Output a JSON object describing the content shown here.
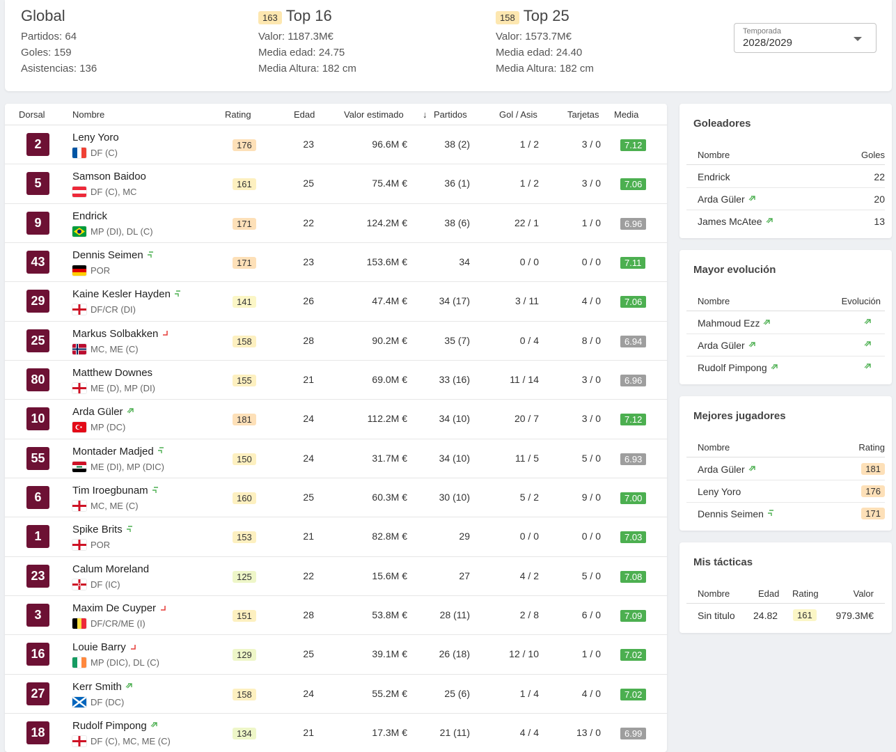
{
  "summary": {
    "global": {
      "title": "Global",
      "lines": [
        "Partidos: 64",
        "Goles: 159",
        "Asistencias: 136"
      ]
    },
    "top16": {
      "badge": "163",
      "title": "Top 16",
      "lines": [
        "Valor: 1187.3M€",
        "Media edad: 24.75",
        "Media Altura: 182 cm"
      ]
    },
    "top25": {
      "badge": "158",
      "title": "Top 25",
      "lines": [
        "Valor: 1573.7M€",
        "Media edad: 24.40",
        "Media Altura: 182 cm"
      ]
    },
    "season": {
      "label": "Temporada",
      "value": "2028/2029"
    }
  },
  "table": {
    "headers": {
      "dorsal": "Dorsal",
      "nombre": "Nombre",
      "rating": "Rating",
      "edad": "Edad",
      "valor": "Valor estimado",
      "partidos": "Partidos",
      "gol_asis": "Gol / Asis",
      "tarjetas": "Tarjetas",
      "media": "Media"
    },
    "sort_icon": "↓",
    "rows": [
      {
        "dorsal": "2",
        "name": "Leny Yoro",
        "flag": "fr",
        "trend": "",
        "pos": "DF (C)",
        "rating": "176",
        "edad": "23",
        "valor": "96.6M €",
        "partidos": "38 (2)",
        "gol_asis": "1 / 2",
        "tarjetas": "3 / 0",
        "media": "7.12",
        "media_color": "green"
      },
      {
        "dorsal": "5",
        "name": "Samson Baidoo",
        "flag": "at",
        "trend": "",
        "pos": "DF (C), MC",
        "rating": "161",
        "edad": "25",
        "valor": "75.4M €",
        "partidos": "36 (1)",
        "gol_asis": "1 / 2",
        "tarjetas": "3 / 0",
        "media": "7.06",
        "media_color": "green"
      },
      {
        "dorsal": "9",
        "name": "Endrick",
        "flag": "br",
        "trend": "",
        "pos": "MP (DI), DL (C)",
        "rating": "171",
        "edad": "22",
        "valor": "124.2M €",
        "partidos": "38 (6)",
        "gol_asis": "22 / 1",
        "tarjetas": "1 / 0",
        "media": "6.96",
        "media_color": "grey"
      },
      {
        "dorsal": "43",
        "name": "Dennis Seimen",
        "flag": "de",
        "trend": "up",
        "pos": "POR",
        "rating": "171",
        "edad": "23",
        "valor": "153.6M €",
        "partidos": "34",
        "gol_asis": "0 / 0",
        "tarjetas": "0 / 0",
        "media": "7.11",
        "media_color": "green"
      },
      {
        "dorsal": "29",
        "name": "Kaine Kesler Hayden",
        "flag": "en",
        "trend": "up",
        "pos": "DF/CR (DI)",
        "rating": "141",
        "edad": "26",
        "valor": "47.4M €",
        "partidos": "34 (17)",
        "gol_asis": "3 / 11",
        "tarjetas": "4 / 0",
        "media": "7.06",
        "media_color": "green"
      },
      {
        "dorsal": "25",
        "name": "Markus Solbakken",
        "flag": "no",
        "trend": "down",
        "pos": "MC, ME (C)",
        "rating": "158",
        "edad": "28",
        "valor": "90.2M €",
        "partidos": "35 (7)",
        "gol_asis": "0 / 4",
        "tarjetas": "8 / 0",
        "media": "6.94",
        "media_color": "grey"
      },
      {
        "dorsal": "80",
        "name": "Matthew Downes",
        "flag": "en",
        "trend": "",
        "pos": "ME (D), MP (DI)",
        "rating": "155",
        "edad": "21",
        "valor": "69.0M €",
        "partidos": "33 (16)",
        "gol_asis": "11 / 14",
        "tarjetas": "3 / 0",
        "media": "6.96",
        "media_color": "grey"
      },
      {
        "dorsal": "10",
        "name": "Arda Güler",
        "flag": "tr",
        "trend": "up2",
        "pos": "MP (DC)",
        "rating": "181",
        "edad": "24",
        "valor": "112.2M €",
        "partidos": "34 (10)",
        "gol_asis": "20 / 7",
        "tarjetas": "3 / 0",
        "media": "7.12",
        "media_color": "green"
      },
      {
        "dorsal": "55",
        "name": "Montader Madjed",
        "flag": "iq",
        "trend": "up",
        "pos": "ME (DI), MP (DIC)",
        "rating": "150",
        "edad": "24",
        "valor": "31.7M €",
        "partidos": "34 (10)",
        "gol_asis": "11 / 5",
        "tarjetas": "5 / 0",
        "media": "6.93",
        "media_color": "grey"
      },
      {
        "dorsal": "6",
        "name": "Tim Iroegbunam",
        "flag": "en",
        "trend": "up",
        "pos": "MC, ME (C)",
        "rating": "160",
        "edad": "25",
        "valor": "60.3M €",
        "partidos": "30 (10)",
        "gol_asis": "5 / 2",
        "tarjetas": "9 / 0",
        "media": "7.00",
        "media_color": "green"
      },
      {
        "dorsal": "1",
        "name": "Spike Brits",
        "flag": "en",
        "trend": "up",
        "pos": "POR",
        "rating": "153",
        "edad": "21",
        "valor": "82.8M €",
        "partidos": "29",
        "gol_asis": "0 / 0",
        "tarjetas": "0 / 0",
        "media": "7.03",
        "media_color": "green"
      },
      {
        "dorsal": "23",
        "name": "Calum Moreland",
        "flag": "nir",
        "trend": "",
        "pos": "DF (IC)",
        "rating": "125",
        "edad": "22",
        "valor": "15.6M €",
        "partidos": "27",
        "gol_asis": "4 / 2",
        "tarjetas": "5 / 0",
        "media": "7.08",
        "media_color": "green"
      },
      {
        "dorsal": "3",
        "name": "Maxim De Cuyper",
        "flag": "be",
        "trend": "down",
        "pos": "DF/CR/ME (I)",
        "rating": "151",
        "edad": "28",
        "valor": "53.8M €",
        "partidos": "28 (11)",
        "gol_asis": "2 / 8",
        "tarjetas": "6 / 0",
        "media": "7.09",
        "media_color": "green"
      },
      {
        "dorsal": "16",
        "name": "Louie Barry",
        "flag": "ie",
        "trend": "down",
        "pos": "MP (DIC), DL (C)",
        "rating": "129",
        "edad": "25",
        "valor": "39.1M €",
        "partidos": "26 (18)",
        "gol_asis": "12 / 10",
        "tarjetas": "1 / 0",
        "media": "7.02",
        "media_color": "green"
      },
      {
        "dorsal": "27",
        "name": "Kerr Smith",
        "flag": "sc",
        "trend": "up2",
        "pos": "DF (DC)",
        "rating": "158",
        "edad": "24",
        "valor": "55.2M €",
        "partidos": "25 (6)",
        "gol_asis": "1 / 4",
        "tarjetas": "4 / 0",
        "media": "7.02",
        "media_color": "green"
      },
      {
        "dorsal": "18",
        "name": "Rudolf Pimpong",
        "flag": "en",
        "trend": "up2",
        "pos": "DF (C), MC, ME (C)",
        "rating": "134",
        "edad": "21",
        "valor": "17.3M €",
        "partidos": "21 (11)",
        "gol_asis": "4 / 4",
        "tarjetas": "13 / 0",
        "media": "6.99",
        "media_color": "grey"
      }
    ]
  },
  "goleadores": {
    "title": "Goleadores",
    "headers": [
      "Nombre",
      "Goles"
    ],
    "rows": [
      {
        "name": "Endrick",
        "trend": "",
        "value": "22"
      },
      {
        "name": "Arda Güler",
        "trend": "up2",
        "value": "20"
      },
      {
        "name": "James McAtee",
        "trend": "up2",
        "value": "13"
      }
    ]
  },
  "evolucion": {
    "title": "Mayor evolución",
    "headers": [
      "Nombre",
      "Evolución"
    ],
    "rows": [
      {
        "name": "Mahmoud Ezz",
        "trend": "up2"
      },
      {
        "name": "Arda Güler",
        "trend": "up2"
      },
      {
        "name": "Rudolf Pimpong",
        "trend": "up2"
      }
    ]
  },
  "mejores": {
    "title": "Mejores jugadores",
    "headers": [
      "Nombre",
      "Rating"
    ],
    "rows": [
      {
        "name": "Arda Güler",
        "trend": "up2",
        "rating": "181"
      },
      {
        "name": "Leny Yoro",
        "trend": "",
        "rating": "176"
      },
      {
        "name": "Dennis Seimen",
        "trend": "up",
        "rating": "171"
      }
    ]
  },
  "tacticas": {
    "title": "Mis tácticas",
    "headers": [
      "Nombre",
      "Edad",
      "Rating",
      "Valor"
    ],
    "rows": [
      {
        "name": "Sin titulo",
        "edad": "24.82",
        "rating": "161",
        "valor": "979.3M€"
      }
    ]
  },
  "colors": {
    "dorsal_bg": "#6d1134",
    "media_green": "#4caf50",
    "media_grey": "#9e9e9e",
    "badge_yellow": "#fde7b0",
    "trend_up": "#4caf50",
    "trend_down": "#e53935"
  },
  "icons": {
    "trend_up": "trend-up-icon",
    "trend_up_double": "trend-up-double-icon",
    "trend_down": "trend-down-icon",
    "dropdown": "caret-down-icon",
    "sort": "arrow-down-icon"
  }
}
